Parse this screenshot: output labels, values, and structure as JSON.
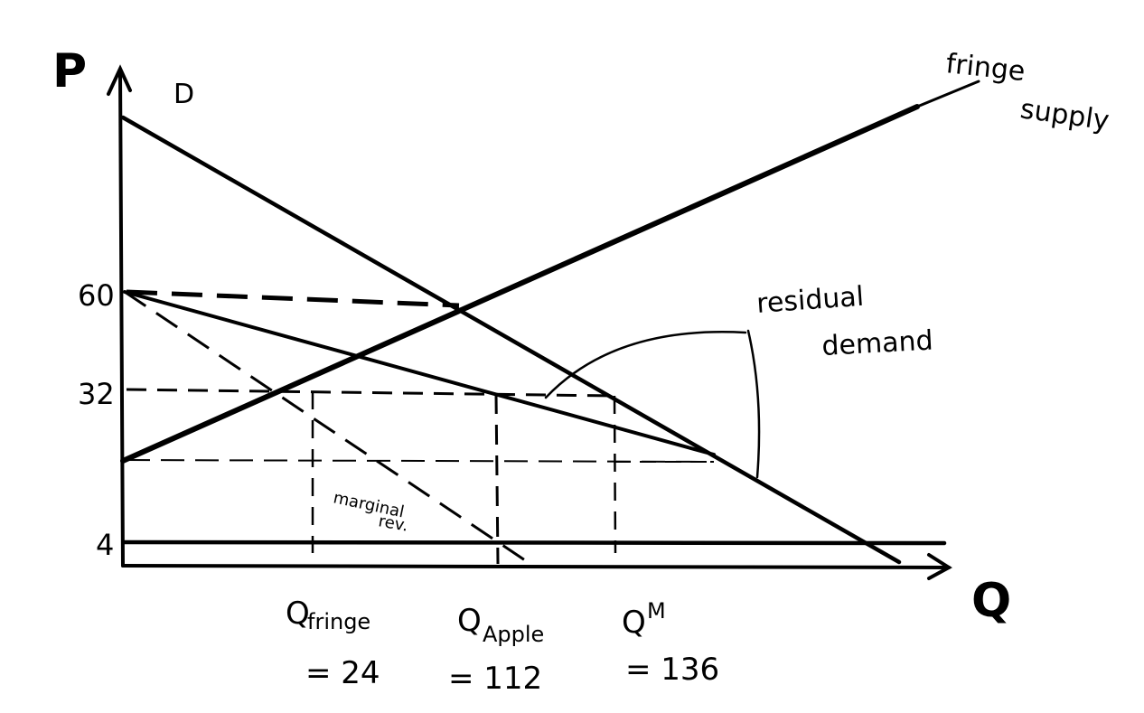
{
  "axes": {
    "y_label": "P",
    "x_label": "Q"
  },
  "price_ticks": [
    "60",
    "32",
    "4"
  ],
  "curve_labels": {
    "demand": "D",
    "fringe_supply_1": "fringe",
    "fringe_supply_2": "supply",
    "residual_demand_1": "residual",
    "residual_demand_2": "demand",
    "marginal_rev_1": "marginal",
    "marginal_rev_2": "rev."
  },
  "quantity_labels": {
    "fringe": {
      "q": "Q",
      "sub": "fringe",
      "value": "= 24"
    },
    "apple": {
      "q": "Q",
      "sub": "Apple",
      "value": "= 112"
    },
    "monopoly": {
      "q": "Q",
      "sub": "M",
      "value": "= 136"
    }
  },
  "colors": {
    "ink": "#000000",
    "background": "#ffffff"
  }
}
